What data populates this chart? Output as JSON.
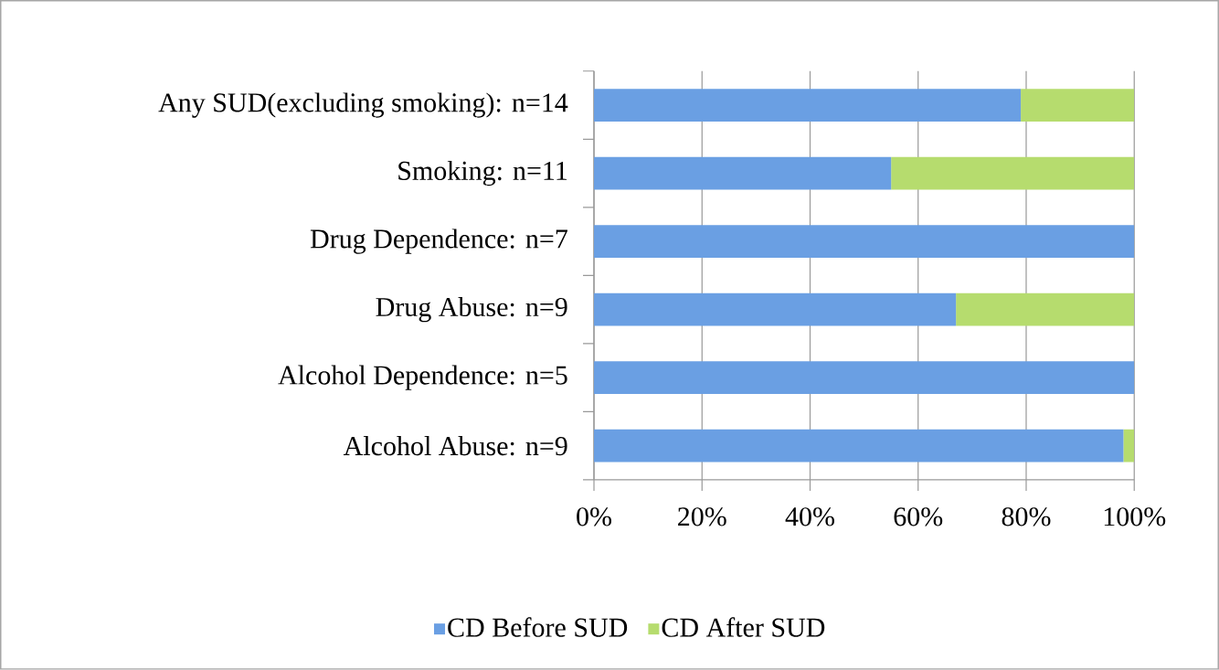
{
  "chart_data": {
    "type": "bar",
    "orientation": "horizontal",
    "stacked": true,
    "categories": [
      "Any SUD(excluding smoking): n=14",
      "Smoking: n=11",
      "Drug Dependence: n=7",
      "Drug Abuse: n=9",
      "Alcohol Dependence: n=5",
      "Alcohol Abuse: n=9"
    ],
    "series": [
      {
        "name": "CD Before SUD",
        "color": "#6a9fe3",
        "values": [
          79,
          55,
          100,
          67,
          100,
          98
        ]
      },
      {
        "name": "CD After SUD",
        "color": "#b6dc6e",
        "values": [
          21,
          45,
          0,
          33,
          0,
          2
        ]
      }
    ],
    "xlim": [
      0,
      100
    ],
    "xticks": [
      {
        "value": 0,
        "label": "0%"
      },
      {
        "value": 20,
        "label": "20%"
      },
      {
        "value": 40,
        "label": "40%"
      },
      {
        "value": 60,
        "label": "60%"
      },
      {
        "value": 80,
        "label": "80%"
      },
      {
        "value": 100,
        "label": "100%"
      }
    ],
    "grid": "x",
    "legend": "bottom"
  }
}
